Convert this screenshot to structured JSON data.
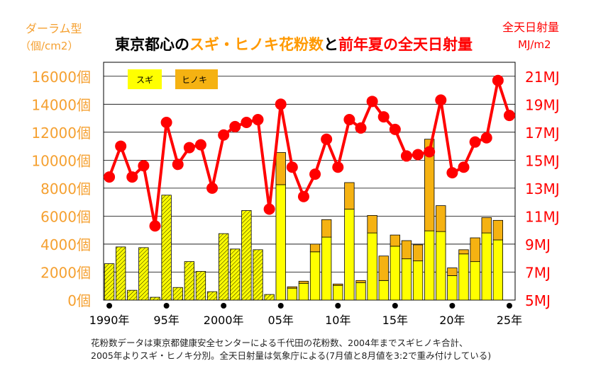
{
  "title": {
    "part1": "東京都心の",
    "part2": "スギ・ヒノキ花粉数",
    "part3": "と",
    "part4": "前年夏の全天日射量"
  },
  "left_axis": {
    "label_line1": "ダーラム型",
    "label_line2": "（個/cm2）"
  },
  "right_axis": {
    "label_line1": "全天日射量",
    "label_line2": "MJ/m2"
  },
  "legend": {
    "sugi": "スギ",
    "hinoki": "ヒノキ"
  },
  "notes": {
    "line1": "花粉数データは東京都健康安全センターによる千代田の花粉数、2004年までスギヒノキ合計、",
    "line2": "2005年よりスギ・ヒノキ分別。全天日射量は気象庁による(7月値と8月値を3:2で重み付けしている)"
  },
  "colors": {
    "sugi": "#ffff00",
    "hinoki": "#f5b212",
    "radiation": "#ff0000",
    "left_axis_text": "#f5a030",
    "right_axis_text": "#ff0000"
  },
  "chart_data": {
    "type": "bar",
    "title": "東京都心のスギ・ヒノキ花粉数と前年夏の全天日射量",
    "ylabel": "ダーラム型（個/cm2）",
    "y2label": "全天日射量 MJ/m2",
    "ylim": [
      0,
      17000
    ],
    "y2lim": [
      5,
      22
    ],
    "yticks": [
      "0個",
      "2000個",
      "4000個",
      "6000個",
      "8000個",
      "10000個",
      "12000個",
      "14000個",
      "16000個"
    ],
    "y2ticks": [
      "5MJ",
      "7MJ",
      "9MJ",
      "11MJ",
      "13MJ",
      "15MJ",
      "17MJ",
      "19MJ",
      "21MJ"
    ],
    "xticks": [
      "1990年",
      "95年",
      "2000年",
      "05年",
      "10年",
      "15年",
      "20年",
      "25年"
    ],
    "years": [
      1990,
      1991,
      1992,
      1993,
      1994,
      1995,
      1996,
      1997,
      1998,
      1999,
      2000,
      2001,
      2002,
      2003,
      2004,
      2005,
      2006,
      2007,
      2008,
      2009,
      2010,
      2011,
      2012,
      2013,
      2014,
      2015,
      2016,
      2017,
      2018,
      2019,
      2020,
      2021,
      2022,
      2023,
      2024,
      2025
    ],
    "combined_total": [
      2600,
      3800,
      700,
      3750,
      200,
      7500,
      900,
      2750,
      2050,
      600,
      4750,
      3650,
      6400,
      3600,
      400,
      null,
      null,
      null,
      null,
      null,
      null,
      null,
      null,
      null,
      null,
      null,
      null,
      null,
      null,
      null,
      null,
      null,
      null,
      null,
      null,
      null
    ],
    "series": [
      {
        "name": "スギ",
        "values": [
          null,
          null,
          null,
          null,
          null,
          null,
          null,
          null,
          null,
          null,
          null,
          null,
          null,
          null,
          null,
          8250,
          850,
          1200,
          3450,
          4500,
          1050,
          6500,
          1250,
          4800,
          1400,
          3850,
          2950,
          2800,
          4950,
          4900,
          1750,
          3300,
          2750,
          4800,
          4300,
          null
        ]
      },
      {
        "name": "ヒノキ",
        "values": [
          null,
          null,
          null,
          null,
          null,
          null,
          null,
          null,
          null,
          null,
          null,
          null,
          null,
          null,
          null,
          2300,
          100,
          150,
          550,
          1250,
          100,
          1900,
          150,
          1250,
          1750,
          800,
          1300,
          1150,
          6550,
          1850,
          550,
          300,
          1700,
          1100,
          1400,
          null
        ]
      }
    ],
    "radiation": [
      13.8,
      16.0,
      13.8,
      14.6,
      10.3,
      17.7,
      14.7,
      15.9,
      16.1,
      13.0,
      16.8,
      17.4,
      17.7,
      17.9,
      11.5,
      19.0,
      14.5,
      12.4,
      14.0,
      16.5,
      14.5,
      17.9,
      17.3,
      19.2,
      18.1,
      17.2,
      15.3,
      15.4,
      15.6,
      19.3,
      14.1,
      14.5,
      16.3,
      16.6,
      20.7,
      18.2
    ]
  }
}
